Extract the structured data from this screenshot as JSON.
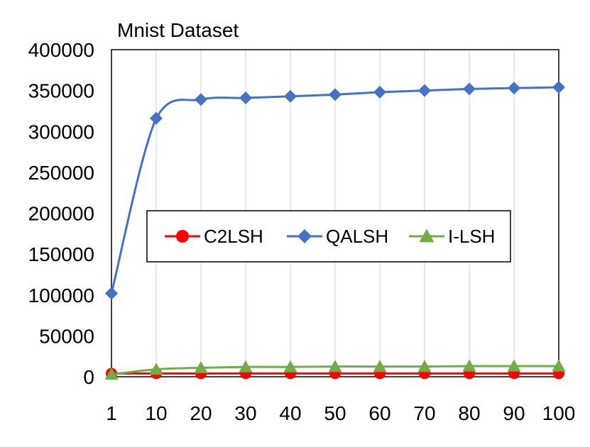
{
  "chart_data": {
    "type": "line",
    "title": "Mnist Dataset",
    "xlabel": "",
    "ylabel": "",
    "categories": [
      "1",
      "10",
      "20",
      "30",
      "40",
      "50",
      "60",
      "70",
      "80",
      "90",
      "100"
    ],
    "yticks": [
      "0",
      "50000",
      "100000",
      "150000",
      "200000",
      "250000",
      "300000",
      "350000",
      "400000"
    ],
    "ylim": [
      0,
      400000
    ],
    "grid": "vertical",
    "legend_position": "center",
    "series": [
      {
        "name": "C2LSH",
        "color": "#ff0000",
        "marker": "circle",
        "values": [
          4000,
          4000,
          4000,
          4000,
          4000,
          4000,
          4000,
          4000,
          4000,
          4000,
          4000
        ]
      },
      {
        "name": "QALSH",
        "color": "#4472c4",
        "marker": "diamond",
        "values": [
          102000,
          316000,
          339000,
          341000,
          343000,
          345000,
          348000,
          350000,
          352000,
          353000,
          354000
        ]
      },
      {
        "name": "I-LSH",
        "color": "#70ad47",
        "marker": "triangle",
        "values": [
          3000,
          9000,
          11000,
          12000,
          12000,
          12500,
          12500,
          12500,
          13000,
          13000,
          13000
        ]
      }
    ]
  }
}
